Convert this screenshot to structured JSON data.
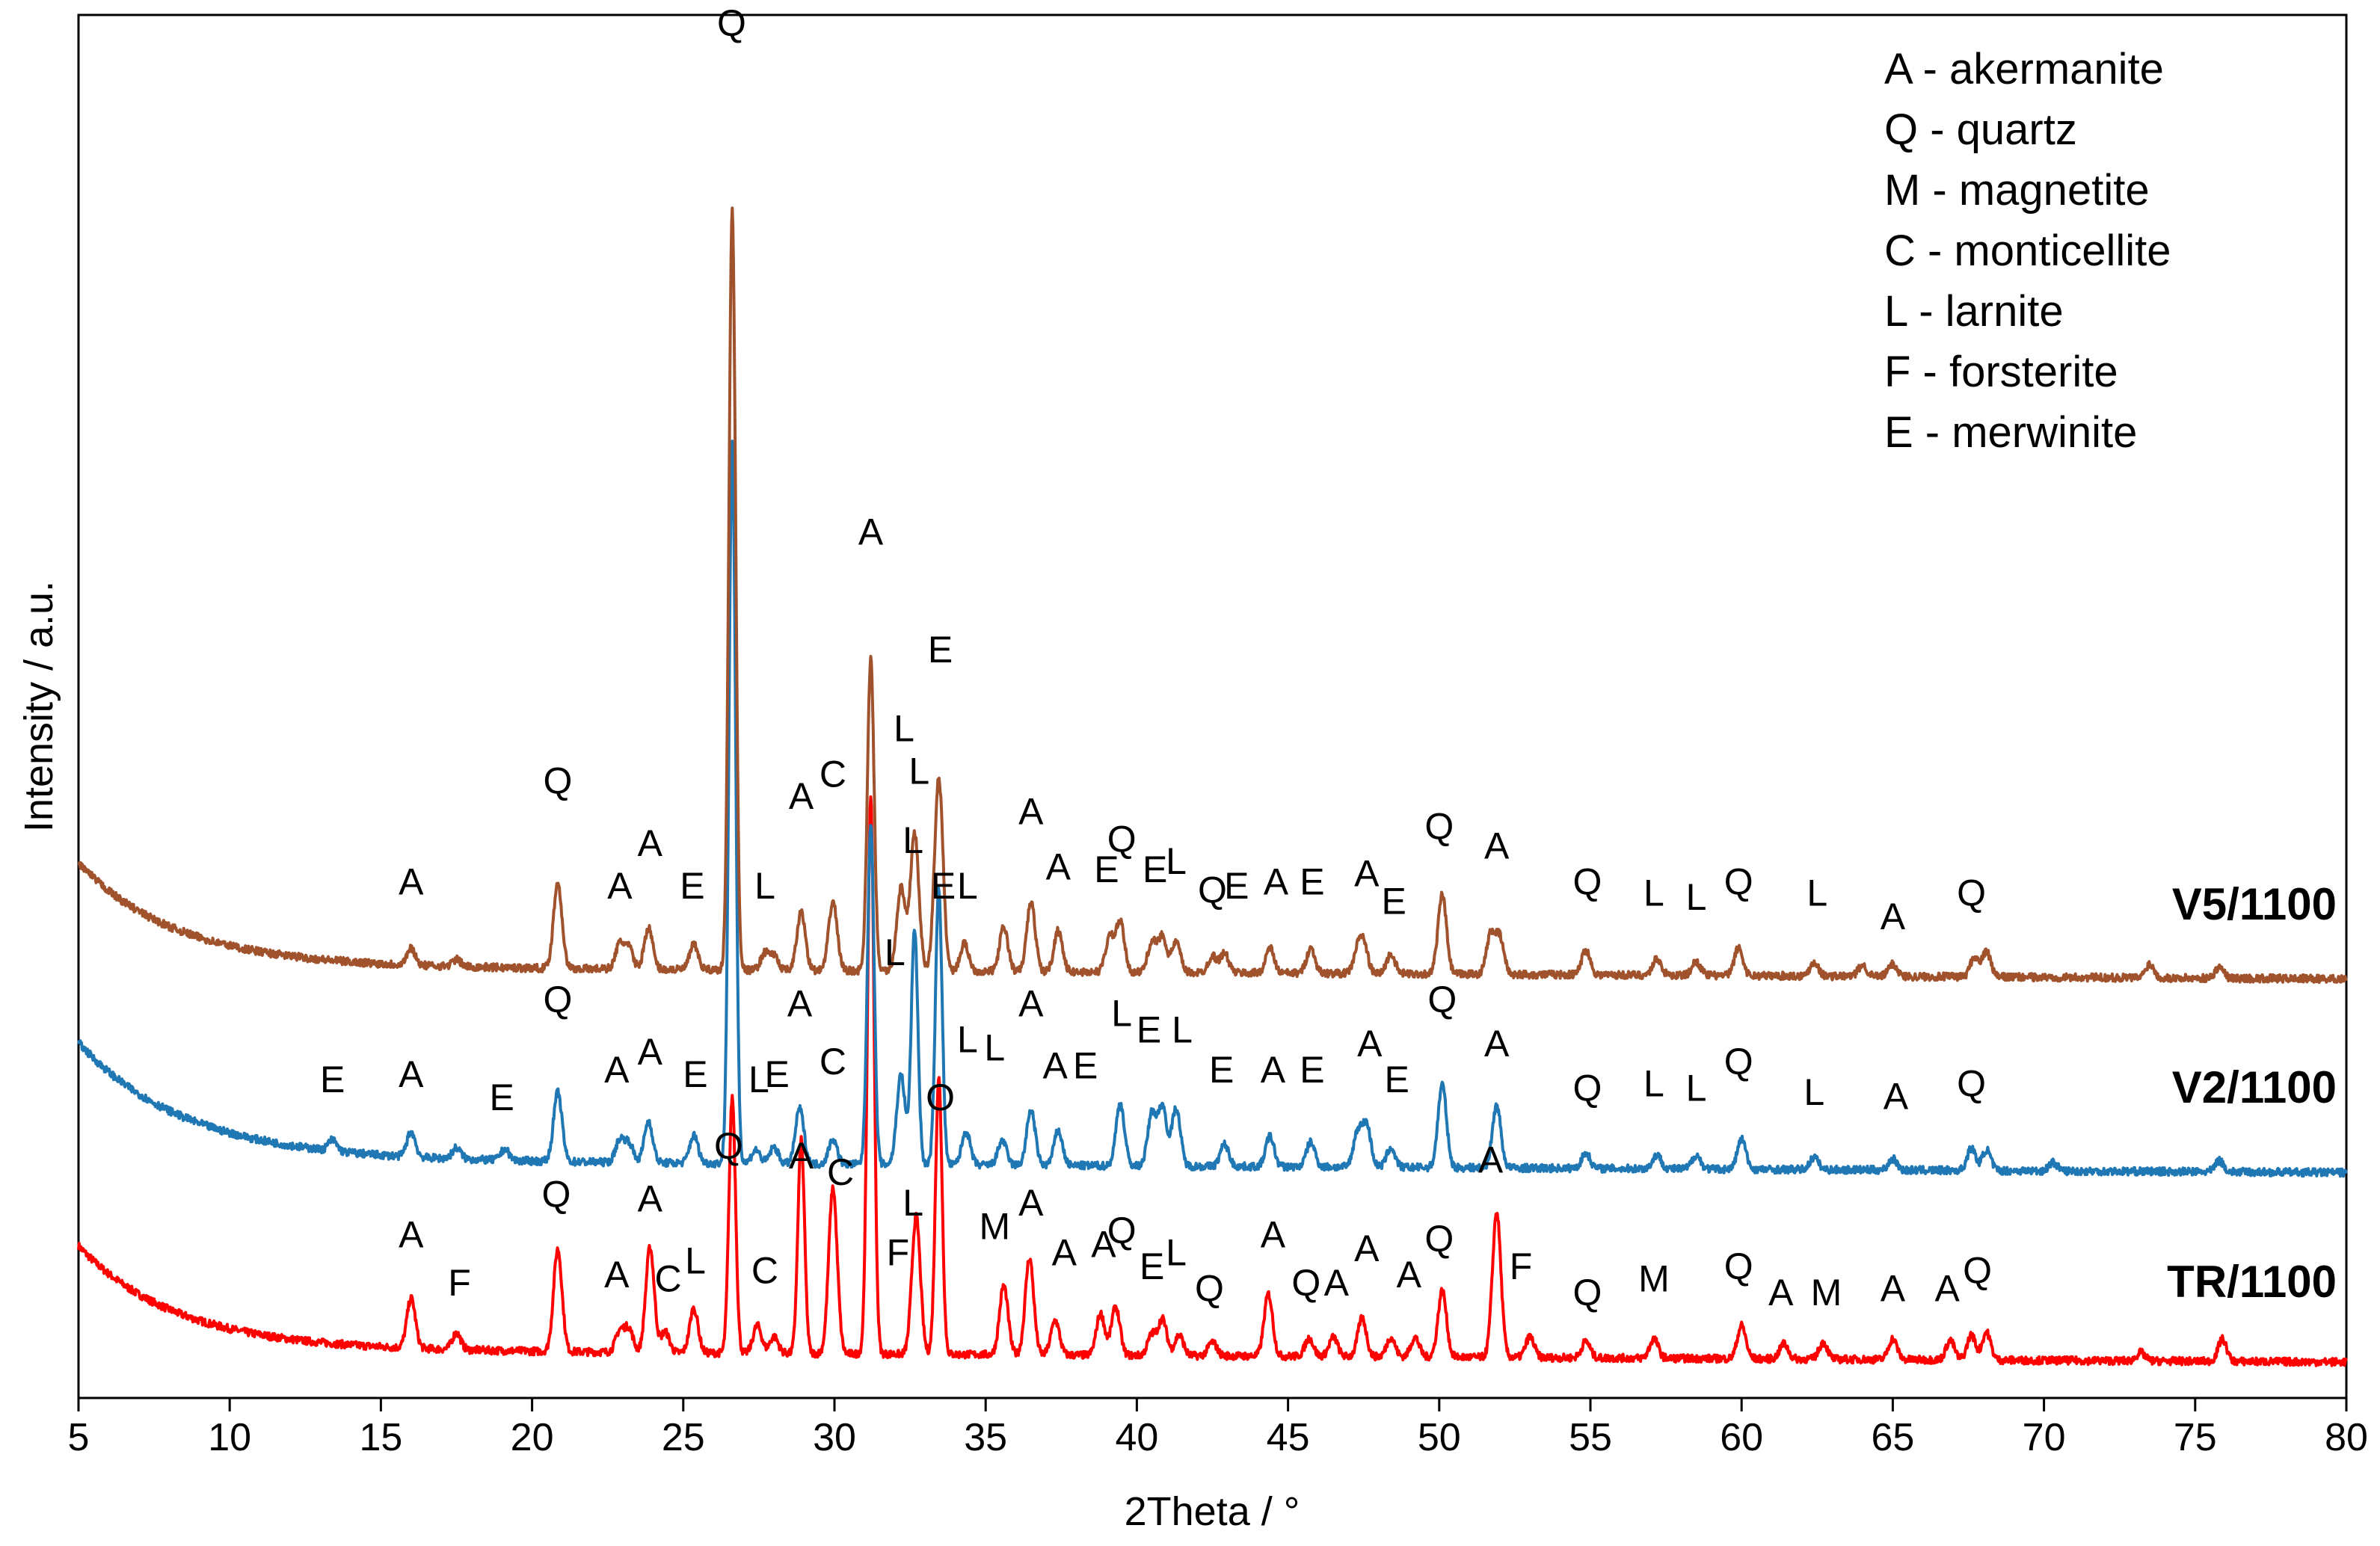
{
  "chart_data": {
    "type": "line",
    "title": "",
    "xlabel": "2Theta / °",
    "ylabel": "Intensity / a.u.",
    "xlim": [
      5,
      80
    ],
    "ylim": [
      0,
      100
    ],
    "x_ticks": [
      5,
      10,
      15,
      20,
      25,
      30,
      35,
      40,
      45,
      50,
      55,
      60,
      65,
      70,
      75,
      80
    ],
    "y_ticks_shown": false,
    "legend": [
      "A - akermanite",
      "Q - quartz",
      "M - magnetite",
      "C - monticellite",
      "L - larnite",
      "F - forsterite",
      "E - merwinite"
    ],
    "legend_position": "top-right",
    "series": [
      {
        "name": "V5/1100",
        "color": "#a0522d",
        "baseline": 31.2,
        "background": {
          "amp": 7.5,
          "decay": 3.2
        },
        "peaks": [
          [
            16.0,
            1.2
          ],
          [
            17.5,
            0.5
          ],
          [
            20.85,
            6.2
          ],
          [
            22.9,
            1.8
          ],
          [
            23.2,
            1.5
          ],
          [
            23.85,
            3.0
          ],
          [
            25.35,
            1.8
          ],
          [
            26.62,
            55.0
          ],
          [
            27.7,
            1.2
          ],
          [
            28.0,
            1.0
          ],
          [
            28.9,
            4.2
          ],
          [
            29.95,
            5.0
          ],
          [
            31.2,
            22.5
          ],
          [
            32.2,
            6.0
          ],
          [
            32.65,
            10.0
          ],
          [
            33.45,
            14.0
          ],
          [
            34.3,
            2.0
          ],
          [
            35.6,
            3.2
          ],
          [
            36.5,
            5.0
          ],
          [
            37.4,
            3.0
          ],
          [
            39.1,
            2.5
          ],
          [
            39.45,
            3.6
          ],
          [
            40.5,
            2.2
          ],
          [
            40.85,
            2.6
          ],
          [
            41.3,
            2.2
          ],
          [
            42.5,
            1.2
          ],
          [
            42.9,
            1.4
          ],
          [
            44.4,
            1.8
          ],
          [
            45.75,
            1.8
          ],
          [
            47.3,
            1.5
          ],
          [
            47.5,
            2.0
          ],
          [
            48.4,
            1.4
          ],
          [
            50.1,
            5.7
          ],
          [
            51.7,
            2.8
          ],
          [
            52.0,
            2.6
          ],
          [
            54.85,
            1.8
          ],
          [
            57.2,
            1.2
          ],
          [
            58.5,
            1.0
          ],
          [
            59.9,
            2.0
          ],
          [
            62.4,
            1.0
          ],
          [
            64.0,
            0.8
          ],
          [
            65.0,
            0.9
          ],
          [
            67.7,
            1.4
          ],
          [
            68.1,
            1.8
          ],
          [
            73.5,
            1.0
          ],
          [
            75.8,
            0.8
          ]
        ]
      },
      {
        "name": "V2/1100",
        "color": "#1f77b4",
        "baseline": 17.2,
        "background": {
          "amp": 8.5,
          "decay": 3.5
        },
        "peaks": [
          [
            13.4,
            0.8
          ],
          [
            16.0,
            1.8
          ],
          [
            17.5,
            0.8
          ],
          [
            19.1,
            0.8
          ],
          [
            20.85,
            5.0
          ],
          [
            22.9,
            1.6
          ],
          [
            23.2,
            1.4
          ],
          [
            23.85,
            3.0
          ],
          [
            25.35,
            2.0
          ],
          [
            26.62,
            52.0
          ],
          [
            27.4,
            1.0
          ],
          [
            28.0,
            1.2
          ],
          [
            28.85,
            4.0
          ],
          [
            29.95,
            1.8
          ],
          [
            31.2,
            24.5
          ],
          [
            32.2,
            6.5
          ],
          [
            32.65,
            17.0
          ],
          [
            33.45,
            20.0
          ],
          [
            34.35,
            2.4
          ],
          [
            35.55,
            1.8
          ],
          [
            36.5,
            4.0
          ],
          [
            37.4,
            2.5
          ],
          [
            39.45,
            4.5
          ],
          [
            40.5,
            3.8
          ],
          [
            40.85,
            4.3
          ],
          [
            41.3,
            4.2
          ],
          [
            42.9,
            1.6
          ],
          [
            44.4,
            2.2
          ],
          [
            45.75,
            1.8
          ],
          [
            47.3,
            2.5
          ],
          [
            47.6,
            3.0
          ],
          [
            48.4,
            1.4
          ],
          [
            50.1,
            6.0
          ],
          [
            51.9,
            4.5
          ],
          [
            54.85,
            1.1
          ],
          [
            57.2,
            1.0
          ],
          [
            58.5,
            1.0
          ],
          [
            60.0,
            2.2
          ],
          [
            62.4,
            0.9
          ],
          [
            65.0,
            0.8
          ],
          [
            67.6,
            1.6
          ],
          [
            68.1,
            1.5
          ],
          [
            70.3,
            0.6
          ],
          [
            75.8,
            0.8
          ]
        ]
      },
      {
        "name": "TR/1100",
        "color": "#ff0000",
        "baseline": 3.5,
        "background": {
          "amp": 7.5,
          "decay": 3.2
        },
        "peaks": [
          [
            16.0,
            3.6
          ],
          [
            17.5,
            1.2
          ],
          [
            20.85,
            7.4
          ],
          [
            22.9,
            1.5
          ],
          [
            23.2,
            1.7
          ],
          [
            23.9,
            7.6
          ],
          [
            24.4,
            1.5
          ],
          [
            25.35,
            3.2
          ],
          [
            26.62,
            18.5
          ],
          [
            27.45,
            2.0
          ],
          [
            28.0,
            1.2
          ],
          [
            28.9,
            15.5
          ],
          [
            29.95,
            12.0
          ],
          [
            31.2,
            40.0
          ],
          [
            32.7,
            10.0
          ],
          [
            33.45,
            20.0
          ],
          [
            35.6,
            5.0
          ],
          [
            36.45,
            7.0
          ],
          [
            37.3,
            2.5
          ],
          [
            38.8,
            3.0
          ],
          [
            39.3,
            3.5
          ],
          [
            40.5,
            1.5
          ],
          [
            40.85,
            2.6
          ],
          [
            41.4,
            1.5
          ],
          [
            42.5,
            1.0
          ],
          [
            44.35,
            4.5
          ],
          [
            45.7,
            1.3
          ],
          [
            46.5,
            1.4
          ],
          [
            47.45,
            2.8
          ],
          [
            48.4,
            1.4
          ],
          [
            49.2,
            1.4
          ],
          [
            50.1,
            4.8
          ],
          [
            51.9,
            10.5
          ],
          [
            53.0,
            1.5
          ],
          [
            54.85,
            1.2
          ],
          [
            57.1,
            1.4
          ],
          [
            60.0,
            2.4
          ],
          [
            61.4,
            1.1
          ],
          [
            62.7,
            1.2
          ],
          [
            65.0,
            1.5
          ],
          [
            66.9,
            1.4
          ],
          [
            67.6,
            1.8
          ],
          [
            68.1,
            2.0
          ],
          [
            73.2,
            0.6
          ],
          [
            75.9,
            1.6
          ]
        ]
      }
    ],
    "peak_labels": [
      {
        "text": "Q",
        "x": 26.6,
        "y": 98.5
      },
      {
        "text": "A",
        "x": 31.2,
        "y": 61.7
      },
      {
        "text": "E",
        "x": 33.5,
        "y": 53.2
      },
      {
        "text": "C",
        "x": 29.95,
        "y": 44.2
      },
      {
        "text": "A",
        "x": 28.9,
        "y": 42.6
      },
      {
        "text": "L",
        "x": 32.3,
        "y": 47.5
      },
      {
        "text": "L",
        "x": 32.8,
        "y": 44.4
      },
      {
        "text": "Q",
        "x": 20.85,
        "y": 43.7
      },
      {
        "text": "A",
        "x": 16.0,
        "y": 36.4
      },
      {
        "text": "A",
        "x": 22.9,
        "y": 36.1
      },
      {
        "text": "A",
        "x": 23.9,
        "y": 39.2
      },
      {
        "text": "E",
        "x": 25.3,
        "y": 36.1
      },
      {
        "text": "L",
        "x": 27.7,
        "y": 36.1
      },
      {
        "text": "A",
        "x": 36.5,
        "y": 41.5
      },
      {
        "text": "A",
        "x": 37.4,
        "y": 37.5
      },
      {
        "text": "L",
        "x": 34.4,
        "y": 36.1
      },
      {
        "text": "Q",
        "x": 39.5,
        "y": 39.5
      },
      {
        "text": "E",
        "x": 39.0,
        "y": 37.3
      },
      {
        "text": "E",
        "x": 40.6,
        "y": 37.3
      },
      {
        "text": "L",
        "x": 41.3,
        "y": 37.9
      },
      {
        "text": "Q",
        "x": 42.5,
        "y": 35.8
      },
      {
        "text": "E",
        "x": 43.3,
        "y": 36.1
      },
      {
        "text": "A",
        "x": 44.6,
        "y": 36.4
      },
      {
        "text": "E",
        "x": 45.8,
        "y": 36.4
      },
      {
        "text": "A",
        "x": 47.6,
        "y": 37.0
      },
      {
        "text": "E",
        "x": 48.5,
        "y": 35.0
      },
      {
        "text": "Q",
        "x": 50.0,
        "y": 40.4
      },
      {
        "text": "A",
        "x": 51.9,
        "y": 39.0
      },
      {
        "text": "Q",
        "x": 54.9,
        "y": 36.4
      },
      {
        "text": "L",
        "x": 57.1,
        "y": 35.6
      },
      {
        "text": "L",
        "x": 58.5,
        "y": 35.3
      },
      {
        "text": "Q",
        "x": 59.9,
        "y": 36.4
      },
      {
        "text": "L",
        "x": 62.5,
        "y": 35.6
      },
      {
        "text": "A",
        "x": 65.0,
        "y": 33.9
      },
      {
        "text": "Q",
        "x": 67.6,
        "y": 35.6
      },
      {
        "text": "E",
        "x": 13.4,
        "y": 22.1
      },
      {
        "text": "A",
        "x": 16.0,
        "y": 22.5
      },
      {
        "text": "E",
        "x": 19.0,
        "y": 20.8
      },
      {
        "text": "Q",
        "x": 20.85,
        "y": 27.9
      },
      {
        "text": "A",
        "x": 22.8,
        "y": 22.8
      },
      {
        "text": "A",
        "x": 23.9,
        "y": 24.1
      },
      {
        "text": "E",
        "x": 25.4,
        "y": 22.5
      },
      {
        "text": "L",
        "x": 27.5,
        "y": 22.1
      },
      {
        "text": "E",
        "x": 28.1,
        "y": 22.5
      },
      {
        "text": "A",
        "x": 28.85,
        "y": 27.6
      },
      {
        "text": "C",
        "x": 29.95,
        "y": 23.4
      },
      {
        "text": "L",
        "x": 32.0,
        "y": 31.3
      },
      {
        "text": "L",
        "x": 32.6,
        "y": 39.4
      },
      {
        "text": "E",
        "x": 33.6,
        "y": 36.1
      },
      {
        "text": "L",
        "x": 34.4,
        "y": 25.0
      },
      {
        "text": "L",
        "x": 35.3,
        "y": 24.4
      },
      {
        "text": "A",
        "x": 36.5,
        "y": 27.6
      },
      {
        "text": "A",
        "x": 37.3,
        "y": 23.1
      },
      {
        "text": "E",
        "x": 38.3,
        "y": 23.1
      },
      {
        "text": "L",
        "x": 39.5,
        "y": 26.9
      },
      {
        "text": "E",
        "x": 40.4,
        "y": 25.7
      },
      {
        "text": "L",
        "x": 41.5,
        "y": 25.7
      },
      {
        "text": "E",
        "x": 42.8,
        "y": 22.8
      },
      {
        "text": "A",
        "x": 44.5,
        "y": 22.8
      },
      {
        "text": "E",
        "x": 45.8,
        "y": 22.8
      },
      {
        "text": "A",
        "x": 47.7,
        "y": 24.7
      },
      {
        "text": "E",
        "x": 48.6,
        "y": 22.1
      },
      {
        "text": "Q",
        "x": 50.1,
        "y": 27.9
      },
      {
        "text": "A",
        "x": 51.9,
        "y": 24.7
      },
      {
        "text": "Q",
        "x": 54.9,
        "y": 21.5
      },
      {
        "text": "L",
        "x": 57.1,
        "y": 21.8
      },
      {
        "text": "L",
        "x": 58.5,
        "y": 21.5
      },
      {
        "text": "Q",
        "x": 59.9,
        "y": 23.4
      },
      {
        "text": "L",
        "x": 62.4,
        "y": 21.2
      },
      {
        "text": "A",
        "x": 65.1,
        "y": 20.9
      },
      {
        "text": "Q",
        "x": 67.6,
        "y": 21.8
      },
      {
        "text": "Q",
        "x": 26.5,
        "y": 17.3
      },
      {
        "text": "A",
        "x": 28.9,
        "y": 16.6
      },
      {
        "text": "C",
        "x": 30.2,
        "y": 15.4
      },
      {
        "text": "O",
        "x": 33.5,
        "y": 20.8
      },
      {
        "text": "L",
        "x": 32.6,
        "y": 13.2
      },
      {
        "text": "F",
        "x": 32.1,
        "y": 9.6
      },
      {
        "text": "A",
        "x": 16.0,
        "y": 10.9
      },
      {
        "text": "F",
        "x": 17.6,
        "y": 7.4
      },
      {
        "text": "Q",
        "x": 20.8,
        "y": 13.8
      },
      {
        "text": "A",
        "x": 22.8,
        "y": 8.0
      },
      {
        "text": "A",
        "x": 23.9,
        "y": 13.5
      },
      {
        "text": "C",
        "x": 24.5,
        "y": 7.7
      },
      {
        "text": "L",
        "x": 25.4,
        "y": 9.0
      },
      {
        "text": "C",
        "x": 27.7,
        "y": 8.3
      },
      {
        "text": "M",
        "x": 35.3,
        "y": 11.5
      },
      {
        "text": "A",
        "x": 36.5,
        "y": 13.2
      },
      {
        "text": "A",
        "x": 37.6,
        "y": 9.6
      },
      {
        "text": "A",
        "x": 38.9,
        "y": 10.2
      },
      {
        "text": "Q",
        "x": 39.5,
        "y": 11.2
      },
      {
        "text": "E",
        "x": 40.5,
        "y": 8.6
      },
      {
        "text": "L",
        "x": 41.3,
        "y": 9.6
      },
      {
        "text": "Q",
        "x": 42.4,
        "y": 7.0
      },
      {
        "text": "A",
        "x": 44.5,
        "y": 10.9
      },
      {
        "text": "Q",
        "x": 45.6,
        "y": 7.4
      },
      {
        "text": "A",
        "x": 46.6,
        "y": 7.4
      },
      {
        "text": "A",
        "x": 47.6,
        "y": 9.9
      },
      {
        "text": "A",
        "x": 49.0,
        "y": 8.0
      },
      {
        "text": "Q",
        "x": 50.0,
        "y": 10.6
      },
      {
        "text": "A",
        "x": 51.7,
        "y": 16.3
      },
      {
        "text": "F",
        "x": 52.7,
        "y": 8.6
      },
      {
        "text": "Q",
        "x": 54.9,
        "y": 6.7
      },
      {
        "text": "M",
        "x": 57.1,
        "y": 7.7
      },
      {
        "text": "Q",
        "x": 59.9,
        "y": 8.6
      },
      {
        "text": "A",
        "x": 61.3,
        "y": 6.7
      },
      {
        "text": "M",
        "x": 62.8,
        "y": 6.7
      },
      {
        "text": "A",
        "x": 65.0,
        "y": 7.0
      },
      {
        "text": "A",
        "x": 66.8,
        "y": 7.0
      },
      {
        "text": "Q",
        "x": 67.8,
        "y": 8.3
      }
    ]
  }
}
